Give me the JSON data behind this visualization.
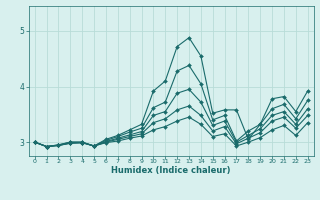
{
  "xlabel": "Humidex (Indice chaleur)",
  "bg_color": "#d8f0ee",
  "grid_color": "#b8dcd8",
  "line_color": "#1a6b6b",
  "xlim": [
    -0.5,
    23.5
  ],
  "ylim": [
    2.75,
    5.45
  ],
  "yticks": [
    3,
    4,
    5
  ],
  "xticks": [
    0,
    1,
    2,
    3,
    4,
    5,
    6,
    7,
    8,
    9,
    10,
    11,
    12,
    13,
    14,
    15,
    16,
    17,
    18,
    19,
    20,
    21,
    22,
    23
  ],
  "lines": [
    {
      "x": [
        0,
        1,
        2,
        3,
        4,
        5,
        6,
        7,
        8,
        9,
        10,
        11,
        12,
        13,
        14,
        15,
        16,
        17,
        18,
        19,
        20,
        21,
        22,
        23
      ],
      "y": [
        3.0,
        2.92,
        2.95,
        3.0,
        3.0,
        2.93,
        3.05,
        3.12,
        3.22,
        3.32,
        3.92,
        4.1,
        4.72,
        4.88,
        4.55,
        3.52,
        3.58,
        3.58,
        3.05,
        3.32,
        3.78,
        3.82,
        3.55,
        3.92
      ]
    },
    {
      "x": [
        0,
        1,
        2,
        3,
        4,
        5,
        6,
        7,
        8,
        9,
        10,
        11,
        12,
        13,
        14,
        15,
        16,
        17,
        18,
        19,
        20,
        21,
        22,
        23
      ],
      "y": [
        3.0,
        2.92,
        2.95,
        3.0,
        3.0,
        2.93,
        3.03,
        3.1,
        3.18,
        3.25,
        3.62,
        3.72,
        4.28,
        4.38,
        4.05,
        3.4,
        3.48,
        3.02,
        3.2,
        3.32,
        3.6,
        3.68,
        3.42,
        3.75
      ]
    },
    {
      "x": [
        0,
        1,
        2,
        3,
        4,
        5,
        6,
        7,
        8,
        9,
        10,
        11,
        12,
        13,
        14,
        15,
        16,
        17,
        18,
        19,
        20,
        21,
        22,
        23
      ],
      "y": [
        3.0,
        2.92,
        2.94,
        2.99,
        2.99,
        2.93,
        3.01,
        3.07,
        3.13,
        3.19,
        3.48,
        3.55,
        3.88,
        3.95,
        3.72,
        3.3,
        3.38,
        3.0,
        3.12,
        3.24,
        3.48,
        3.55,
        3.32,
        3.6
      ]
    },
    {
      "x": [
        0,
        1,
        2,
        3,
        4,
        5,
        6,
        7,
        8,
        9,
        10,
        11,
        12,
        13,
        14,
        15,
        16,
        17,
        18,
        19,
        20,
        21,
        22,
        23
      ],
      "y": [
        3.0,
        2.92,
        2.94,
        2.98,
        2.99,
        2.93,
        3.0,
        3.05,
        3.1,
        3.15,
        3.35,
        3.42,
        3.58,
        3.65,
        3.48,
        3.2,
        3.28,
        2.97,
        3.07,
        3.17,
        3.38,
        3.45,
        3.25,
        3.48
      ]
    },
    {
      "x": [
        0,
        1,
        2,
        3,
        4,
        5,
        6,
        7,
        8,
        9,
        10,
        11,
        12,
        13,
        14,
        15,
        16,
        17,
        18,
        19,
        20,
        21,
        22,
        23
      ],
      "y": [
        3.0,
        2.92,
        2.94,
        2.98,
        2.99,
        2.93,
        2.99,
        3.02,
        3.07,
        3.11,
        3.22,
        3.28,
        3.38,
        3.45,
        3.32,
        3.1,
        3.15,
        2.93,
        3.0,
        3.08,
        3.22,
        3.3,
        3.12,
        3.35
      ]
    }
  ]
}
